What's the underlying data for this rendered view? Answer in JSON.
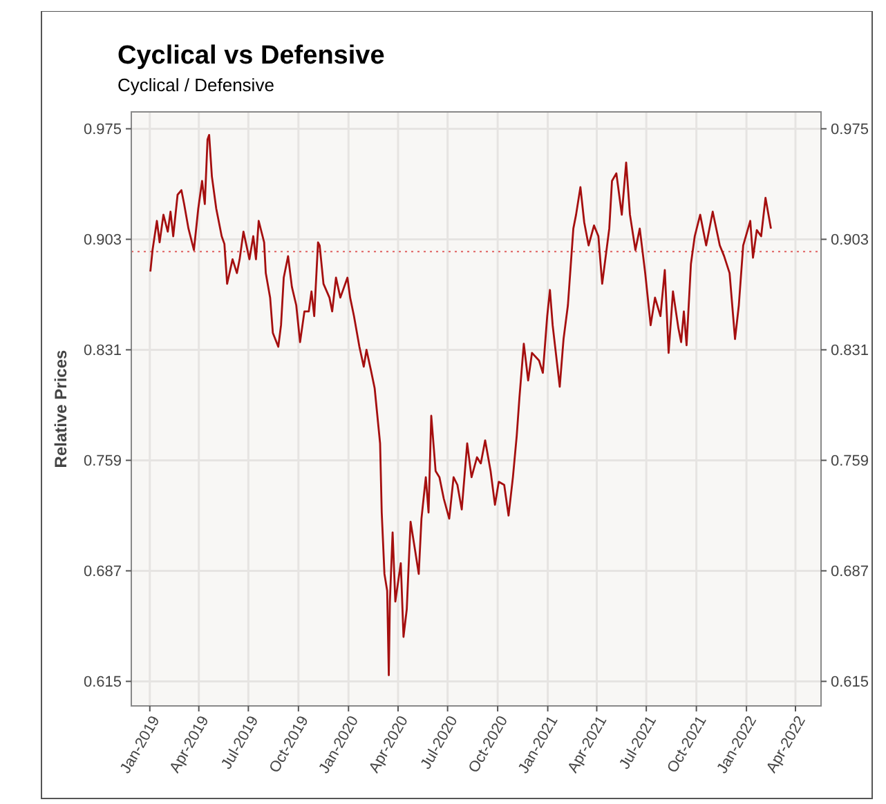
{
  "chart_data": {
    "type": "line",
    "title": "Cyclical vs Defensive",
    "subtitle": "Cyclical / Defensive",
    "ylabel": "Relative Prices",
    "grid": true,
    "marker": "none",
    "line_style": "solid",
    "xlim": [
      "2018-11-28",
      "2022-05-18"
    ],
    "xticks": [
      {
        "value": "2019-01-01",
        "label": "Jan-2019"
      },
      {
        "value": "2019-04-01",
        "label": "Apr-2019"
      },
      {
        "value": "2019-07-01",
        "label": "Jul-2019"
      },
      {
        "value": "2019-10-01",
        "label": "Oct-2019"
      },
      {
        "value": "2020-01-01",
        "label": "Jan-2020"
      },
      {
        "value": "2020-04-01",
        "label": "Apr-2020"
      },
      {
        "value": "2020-07-01",
        "label": "Jul-2020"
      },
      {
        "value": "2020-10-01",
        "label": "Oct-2020"
      },
      {
        "value": "2021-01-01",
        "label": "Jan-2021"
      },
      {
        "value": "2021-04-01",
        "label": "Apr-2021"
      },
      {
        "value": "2021-07-01",
        "label": "Jul-2021"
      },
      {
        "value": "2021-10-01",
        "label": "Oct-2021"
      },
      {
        "value": "2022-01-01",
        "label": "Jan-2022"
      },
      {
        "value": "2022-04-01",
        "label": "Apr-2022"
      }
    ],
    "ylim": [
      0.599,
      0.986
    ],
    "yticks": [
      0.615,
      0.687,
      0.759,
      0.831,
      0.903,
      0.975
    ],
    "y2lim": [
      0.599,
      0.986
    ],
    "y2ticks": [
      0.615,
      0.687,
      0.759,
      0.831,
      0.903,
      0.975
    ],
    "ref_lines": [
      {
        "axis": "y",
        "value": 0.895,
        "color": "#e06060",
        "line_style": "dotted"
      }
    ],
    "series": [
      {
        "color": "#a50f0f",
        "x": [
          "2019-01-02",
          "2019-01-06",
          "2019-01-14",
          "2019-01-19",
          "2019-01-26",
          "2019-02-03",
          "2019-02-08",
          "2019-02-13",
          "2019-02-21",
          "2019-02-28",
          "2019-03-05",
          "2019-03-13",
          "2019-03-23",
          "2019-03-31",
          "2019-04-07",
          "2019-04-12",
          "2019-04-17",
          "2019-04-20",
          "2019-04-25",
          "2019-05-03",
          "2019-05-13",
          "2019-05-18",
          "2019-05-23",
          "2019-06-02",
          "2019-06-10",
          "2019-06-15",
          "2019-06-22",
          "2019-07-03",
          "2019-07-10",
          "2019-07-15",
          "2019-07-20",
          "2019-07-30",
          "2019-08-02",
          "2019-08-10",
          "2019-08-15",
          "2019-08-25",
          "2019-08-30",
          "2019-09-04",
          "2019-09-12",
          "2019-09-19",
          "2019-09-27",
          "2019-10-04",
          "2019-10-12",
          "2019-10-20",
          "2019-10-25",
          "2019-10-30",
          "2019-11-06",
          "2019-11-09",
          "2019-11-16",
          "2019-11-27",
          "2019-12-02",
          "2019-12-09",
          "2019-12-17",
          "2019-12-30",
          "2020-01-04",
          "2020-01-11",
          "2020-01-21",
          "2020-01-29",
          "2020-02-03",
          "2020-02-11",
          "2020-02-18",
          "2020-02-23",
          "2020-02-28",
          "2020-03-02",
          "2020-03-07",
          "2020-03-12",
          "2020-03-15",
          "2020-03-17",
          "2020-03-22",
          "2020-03-27",
          "2020-04-06",
          "2020-04-11",
          "2020-04-17",
          "2020-04-24",
          "2020-05-02",
          "2020-05-09",
          "2020-05-14",
          "2020-05-22",
          "2020-05-27",
          "2020-06-01",
          "2020-06-09",
          "2020-06-16",
          "2020-06-24",
          "2020-07-04",
          "2020-07-12",
          "2020-07-19",
          "2020-07-27",
          "2020-08-06",
          "2020-08-14",
          "2020-08-24",
          "2020-08-31",
          "2020-09-08",
          "2020-09-18",
          "2020-09-26",
          "2020-10-03",
          "2020-10-13",
          "2020-10-21",
          "2020-10-29",
          "2020-11-05",
          "2020-11-10",
          "2020-11-18",
          "2020-11-26",
          "2020-12-03",
          "2020-12-16",
          "2020-12-23",
          "2020-12-31",
          "2021-01-05",
          "2021-01-10",
          "2021-01-23",
          "2021-01-30",
          "2021-02-07",
          "2021-02-17",
          "2021-02-22",
          "2021-03-02",
          "2021-03-09",
          "2021-03-17",
          "2021-03-27",
          "2021-04-04",
          "2021-04-11",
          "2021-04-24",
          "2021-04-29",
          "2021-05-07",
          "2021-05-17",
          "2021-05-25",
          "2021-06-01",
          "2021-06-11",
          "2021-06-19",
          "2021-06-29",
          "2021-07-09",
          "2021-07-17",
          "2021-07-27",
          "2021-08-04",
          "2021-08-11",
          "2021-08-19",
          "2021-08-29",
          "2021-09-03",
          "2021-09-08",
          "2021-09-13",
          "2021-09-21",
          "2021-09-28",
          "2021-10-08",
          "2021-10-19",
          "2021-10-31",
          "2021-11-13",
          "2021-11-21",
          "2021-12-01",
          "2021-12-11",
          "2021-12-18",
          "2021-12-26",
          "2022-01-08",
          "2022-01-13",
          "2022-01-20",
          "2022-01-28",
          "2022-02-05",
          "2022-02-15"
        ],
        "values": [
          0.882,
          0.896,
          0.915,
          0.901,
          0.919,
          0.908,
          0.921,
          0.905,
          0.932,
          0.935,
          0.926,
          0.91,
          0.896,
          0.923,
          0.941,
          0.926,
          0.968,
          0.971,
          0.944,
          0.923,
          0.905,
          0.9,
          0.874,
          0.89,
          0.881,
          0.89,
          0.908,
          0.89,
          0.905,
          0.89,
          0.915,
          0.901,
          0.881,
          0.865,
          0.842,
          0.833,
          0.847,
          0.878,
          0.892,
          0.872,
          0.86,
          0.836,
          0.856,
          0.856,
          0.869,
          0.853,
          0.901,
          0.899,
          0.874,
          0.865,
          0.856,
          0.878,
          0.865,
          0.878,
          0.865,
          0.853,
          0.833,
          0.82,
          0.831,
          0.818,
          0.806,
          0.788,
          0.77,
          0.725,
          0.685,
          0.674,
          0.619,
          0.667,
          0.712,
          0.667,
          0.692,
          0.644,
          0.662,
          0.719,
          0.701,
          0.685,
          0.721,
          0.748,
          0.725,
          0.788,
          0.752,
          0.748,
          0.734,
          0.721,
          0.748,
          0.743,
          0.727,
          0.77,
          0.748,
          0.761,
          0.757,
          0.772,
          0.752,
          0.73,
          0.745,
          0.743,
          0.723,
          0.748,
          0.775,
          0.8,
          0.835,
          0.811,
          0.829,
          0.824,
          0.816,
          0.853,
          0.87,
          0.847,
          0.807,
          0.838,
          0.86,
          0.91,
          0.919,
          0.937,
          0.914,
          0.899,
          0.912,
          0.905,
          0.874,
          0.91,
          0.941,
          0.946,
          0.919,
          0.953,
          0.919,
          0.896,
          0.91,
          0.881,
          0.847,
          0.865,
          0.853,
          0.883,
          0.829,
          0.869,
          0.845,
          0.836,
          0.856,
          0.834,
          0.887,
          0.905,
          0.919,
          0.899,
          0.921,
          0.899,
          0.892,
          0.881,
          0.838,
          0.86,
          0.899,
          0.915,
          0.891,
          0.909,
          0.905,
          0.93,
          0.91
        ]
      }
    ]
  }
}
